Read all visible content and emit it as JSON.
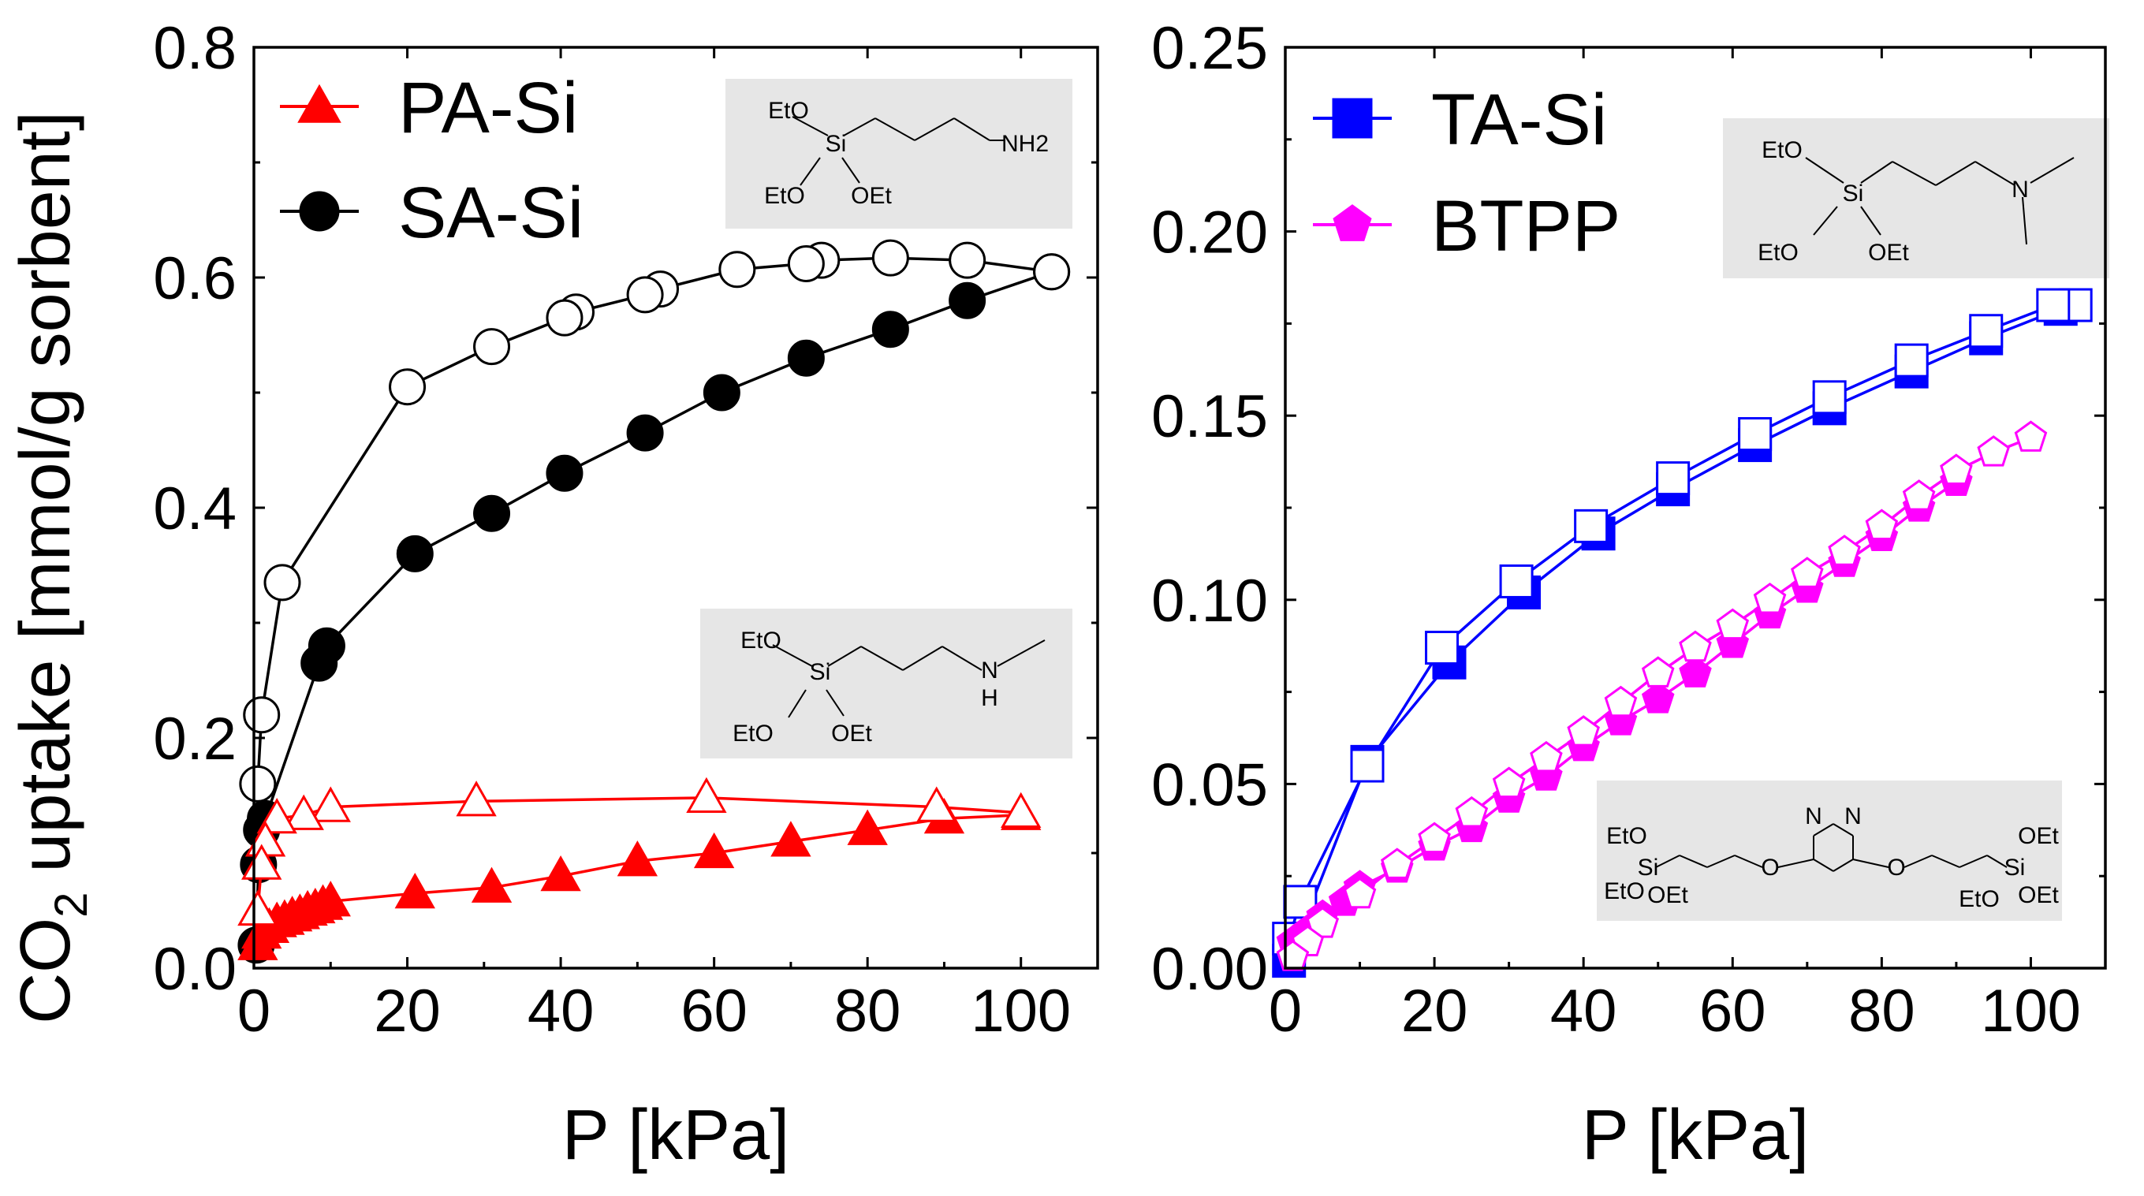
{
  "figure": {
    "ylabel_main": "CO",
    "ylabel_sub": "2",
    "ylabel_rest": " uptake [mmol/g sorbent]"
  },
  "chart_data": [
    {
      "type": "line",
      "panel": "left",
      "xlabel": "P [kPa]",
      "ylabel": "CO2 uptake [mmol/g sorbent]",
      "xlim": [
        0,
        110
      ],
      "ylim": [
        0,
        0.8
      ],
      "xticks": [
        0,
        20,
        40,
        60,
        80,
        100
      ],
      "yticks": [
        0.0,
        0.2,
        0.4,
        0.6,
        0.8
      ],
      "xtick_labels": [
        "0",
        "20",
        "40",
        "60",
        "80",
        "100"
      ],
      "ytick_labels": [
        "0.0",
        "0.2",
        "0.4",
        "0.6",
        "0.8"
      ],
      "legend": [
        {
          "label": "PA-Si",
          "color": "#ff0000",
          "marker": "triangle"
        },
        {
          "label": "SA-Si",
          "color": "#000000",
          "marker": "circle"
        }
      ],
      "series": [
        {
          "name": "SA-Si adsorption",
          "color": "#000000",
          "marker": "circle",
          "filled": true,
          "x": [
            0.3,
            0.6,
            1.0,
            1.5,
            8.5,
            9.5,
            21,
            31,
            40.5,
            51,
            61,
            72,
            83,
            93,
            104
          ],
          "y": [
            0.02,
            0.09,
            0.12,
            0.13,
            0.265,
            0.28,
            0.36,
            0.395,
            0.43,
            0.465,
            0.5,
            0.53,
            0.555,
            0.58,
            0.605
          ]
        },
        {
          "name": "SA-Si desorption",
          "color": "#000000",
          "marker": "circle",
          "filled": false,
          "x": [
            104,
            93,
            83,
            74,
            72,
            63,
            53,
            51,
            42,
            40.5,
            31,
            20,
            3.7,
            1.0,
            0.5
          ],
          "y": [
            0.605,
            0.615,
            0.617,
            0.615,
            0.612,
            0.607,
            0.59,
            0.585,
            0.57,
            0.565,
            0.54,
            0.505,
            0.335,
            0.22,
            0.16
          ]
        },
        {
          "name": "PA-Si adsorption",
          "color": "#ff0000",
          "marker": "triangle",
          "filled": true,
          "x": [
            0.5,
            1.0,
            2.0,
            3.0,
            4.0,
            5.0,
            6.0,
            7.0,
            8.0,
            9.0,
            10.0,
            21,
            31,
            40,
            50,
            60,
            70,
            80,
            90,
            100
          ],
          "y": [
            0.02,
            0.03,
            0.035,
            0.04,
            0.042,
            0.045,
            0.047,
            0.05,
            0.052,
            0.055,
            0.058,
            0.065,
            0.07,
            0.08,
            0.093,
            0.1,
            0.11,
            0.12,
            0.13,
            0.133
          ]
        },
        {
          "name": "PA-Si desorption",
          "color": "#ff0000",
          "marker": "triangle",
          "filled": false,
          "x": [
            100,
            89,
            59,
            29,
            10,
            6.5,
            3.0,
            1.5,
            1.0,
            0.5
          ],
          "y": [
            0.135,
            0.14,
            0.148,
            0.145,
            0.14,
            0.133,
            0.13,
            0.11,
            0.09,
            0.05
          ]
        }
      ],
      "structures": [
        {
          "name": "PA-Si",
          "labels": [
            "EtO",
            "Si",
            "NH2",
            "EtO",
            "OEt"
          ]
        },
        {
          "name": "SA-Si",
          "labels": [
            "EtO",
            "Si",
            "N",
            "H",
            "EtO",
            "OEt"
          ]
        }
      ]
    },
    {
      "type": "line",
      "panel": "right",
      "xlabel": "P [kPa]",
      "ylabel": "",
      "xlim": [
        0,
        110
      ],
      "ylim": [
        0,
        0.25
      ],
      "xticks": [
        0,
        20,
        40,
        60,
        80,
        100
      ],
      "yticks": [
        0.0,
        0.05,
        0.1,
        0.15,
        0.2,
        0.25
      ],
      "xtick_labels": [
        "0",
        "20",
        "40",
        "60",
        "80",
        "100"
      ],
      "ytick_labels": [
        "0.00",
        "0.05",
        "0.10",
        "0.15",
        "0.20",
        "0.25"
      ],
      "legend": [
        {
          "label": "TA-Si",
          "color": "#0000ff",
          "marker": "square"
        },
        {
          "label": "BTPP",
          "color": "#ff00ff",
          "marker": "pentagon"
        }
      ],
      "series": [
        {
          "name": "TA-Si adsorption",
          "color": "#0000ff",
          "marker": "square",
          "filled": true,
          "x": [
            0.5,
            11,
            22,
            32,
            42,
            52,
            63,
            73,
            84,
            94,
            104
          ],
          "y": [
            0.002,
            0.056,
            0.083,
            0.102,
            0.118,
            0.13,
            0.142,
            0.152,
            0.162,
            0.171,
            0.179
          ]
        },
        {
          "name": "TA-Si desorption",
          "color": "#0000ff",
          "marker": "square",
          "filled": false,
          "x": [
            106,
            103,
            94,
            84,
            73,
            63,
            52,
            41,
            31,
            21,
            11,
            2,
            0.5
          ],
          "y": [
            0.18,
            0.18,
            0.173,
            0.165,
            0.155,
            0.145,
            0.133,
            0.12,
            0.105,
            0.087,
            0.055,
            0.018,
            0.008
          ]
        },
        {
          "name": "BTPP adsorption",
          "color": "#ff00ff",
          "marker": "pentagon",
          "filled": true,
          "x": [
            1,
            3,
            5,
            8,
            10,
            15,
            20,
            25,
            30,
            35,
            40,
            45,
            50,
            55,
            60,
            65,
            70,
            75,
            80,
            85,
            90
          ],
          "y": [
            0.007,
            0.01,
            0.014,
            0.018,
            0.022,
            0.027,
            0.033,
            0.038,
            0.046,
            0.052,
            0.06,
            0.067,
            0.073,
            0.08,
            0.088,
            0.096,
            0.103,
            0.11,
            0.117,
            0.125,
            0.132
          ]
        },
        {
          "name": "BTPP desorption",
          "color": "#ff00ff",
          "marker": "pentagon",
          "filled": false,
          "x": [
            100,
            95,
            90,
            85,
            80,
            75,
            70,
            65,
            60,
            55,
            50,
            45,
            40,
            35,
            30,
            25,
            20,
            15,
            10,
            5,
            3,
            1
          ],
          "y": [
            0.144,
            0.14,
            0.135,
            0.128,
            0.12,
            0.113,
            0.107,
            0.1,
            0.093,
            0.087,
            0.08,
            0.072,
            0.064,
            0.057,
            0.05,
            0.042,
            0.035,
            0.028,
            0.02,
            0.012,
            0.007,
            0.003
          ]
        }
      ],
      "structures": [
        {
          "name": "TA-Si",
          "labels": [
            "EtO",
            "Si",
            "N",
            "EtO",
            "OEt"
          ]
        },
        {
          "name": "BTPP",
          "labels": [
            "N",
            "N",
            "EtO",
            "Si",
            "O",
            "O",
            "Si",
            "OEt",
            "EtO",
            "OEt",
            "EtO",
            "OEt"
          ]
        }
      ]
    }
  ]
}
